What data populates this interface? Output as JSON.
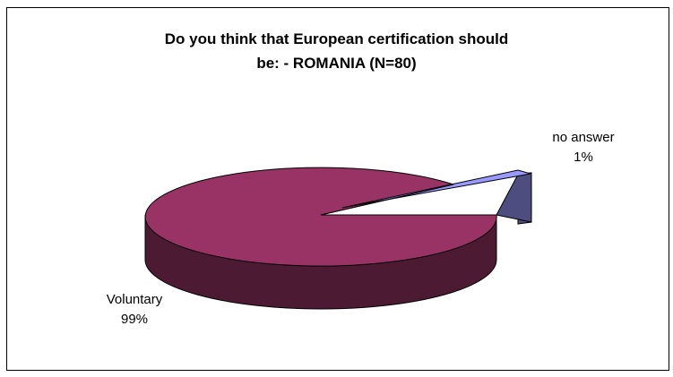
{
  "chart_data": {
    "type": "pie",
    "title_lines": [
      "Do you think that European certification should",
      "be: - ROMANIA (N=80)"
    ],
    "slices": [
      {
        "name": "Voluntary",
        "value": 99,
        "label": "99%",
        "color": "#993366",
        "side_color": "#4d1a33"
      },
      {
        "name": "no answer",
        "value": 1,
        "label": "1%",
        "color": "#9999ff",
        "side_color": "#4d4d80",
        "exploded": true
      }
    ],
    "style": "3d-exploded",
    "legend": "none"
  }
}
